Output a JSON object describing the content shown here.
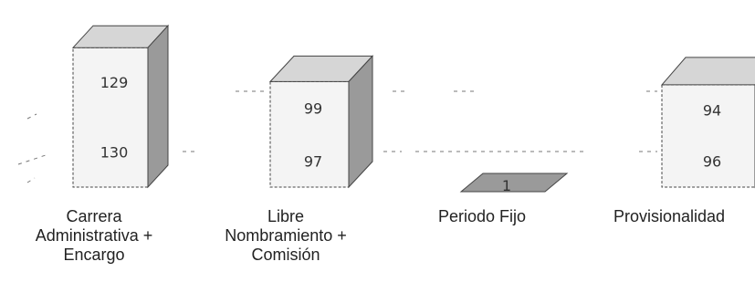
{
  "chart_data": {
    "type": "bar",
    "style": "3d-stacked-column",
    "categories": [
      "Carrera\nAdministrativa +\nEncargo",
      "Libre\nNombramiento +\nComisión",
      "Periodo Fijo",
      "Provisionalidad"
    ],
    "series": [
      {
        "values": [
          130,
          97,
          1,
          96
        ]
      },
      {
        "values": [
          129,
          99,
          null,
          94
        ]
      }
    ],
    "colors": {
      "front": "#f4f4f4",
      "side": "#9a9a9a",
      "top": "#d6d6d6",
      "outline": "#444444"
    }
  }
}
